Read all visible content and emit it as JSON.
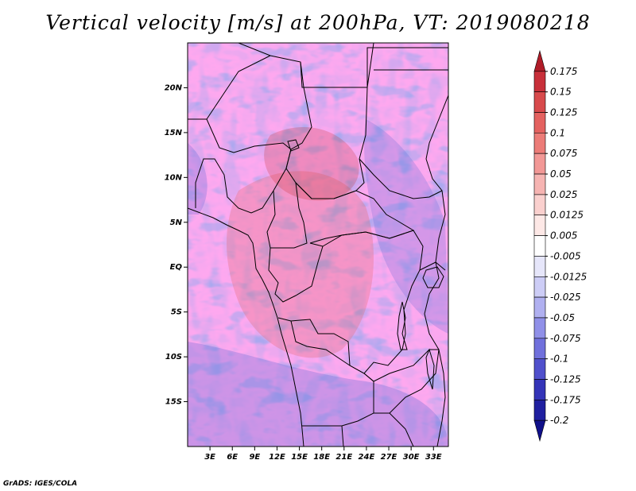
{
  "title": "Vertical velocity [m/s] at 200hPa, VT: 2019080218",
  "credit": "GrADS: IGES/COLA",
  "map": {
    "lon_range": [
      0,
      35
    ],
    "lat_range": [
      -20,
      25
    ],
    "lat_ticks": [
      {
        "value": 20,
        "label": "20N"
      },
      {
        "value": 15,
        "label": "15N"
      },
      {
        "value": 10,
        "label": "10N"
      },
      {
        "value": 5,
        "label": "5N"
      },
      {
        "value": 0,
        "label": "EQ"
      },
      {
        "value": -5,
        "label": "5S"
      },
      {
        "value": -10,
        "label": "10S"
      },
      {
        "value": -15,
        "label": "15S"
      }
    ],
    "lon_ticks": [
      {
        "value": 3,
        "label": "3E"
      },
      {
        "value": 6,
        "label": "6E"
      },
      {
        "value": 9,
        "label": "9E"
      },
      {
        "value": 12,
        "label": "12E"
      },
      {
        "value": 15,
        "label": "15E"
      },
      {
        "value": 18,
        "label": "18E"
      },
      {
        "value": 21,
        "label": "21E"
      },
      {
        "value": 24,
        "label": "24E"
      },
      {
        "value": 27,
        "label": "27E"
      },
      {
        "value": 30,
        "label": "30E"
      },
      {
        "value": 33,
        "label": "33E"
      }
    ]
  },
  "colorbar": {
    "labels": [
      "0.175",
      "0.15",
      "0.125",
      "0.1",
      "0.075",
      "0.05",
      "0.025",
      "0.0125",
      "0.005",
      "-0.005",
      "-0.0125",
      "-0.025",
      "-0.05",
      "-0.075",
      "-0.1",
      "-0.125",
      "-0.175",
      "-0.2"
    ],
    "colors": [
      "#b01c28",
      "#c8303a",
      "#d84a4c",
      "#e46260",
      "#ec7c78",
      "#f29896",
      "#f6b4b2",
      "#fad0ce",
      "#fde8e6",
      "#ffffff",
      "#e6e6fa",
      "#cdcdf6",
      "#b0b0f0",
      "#9090e8",
      "#7070dc",
      "#5050cc",
      "#3434b8",
      "#2020a0",
      "#10108a"
    ]
  }
}
